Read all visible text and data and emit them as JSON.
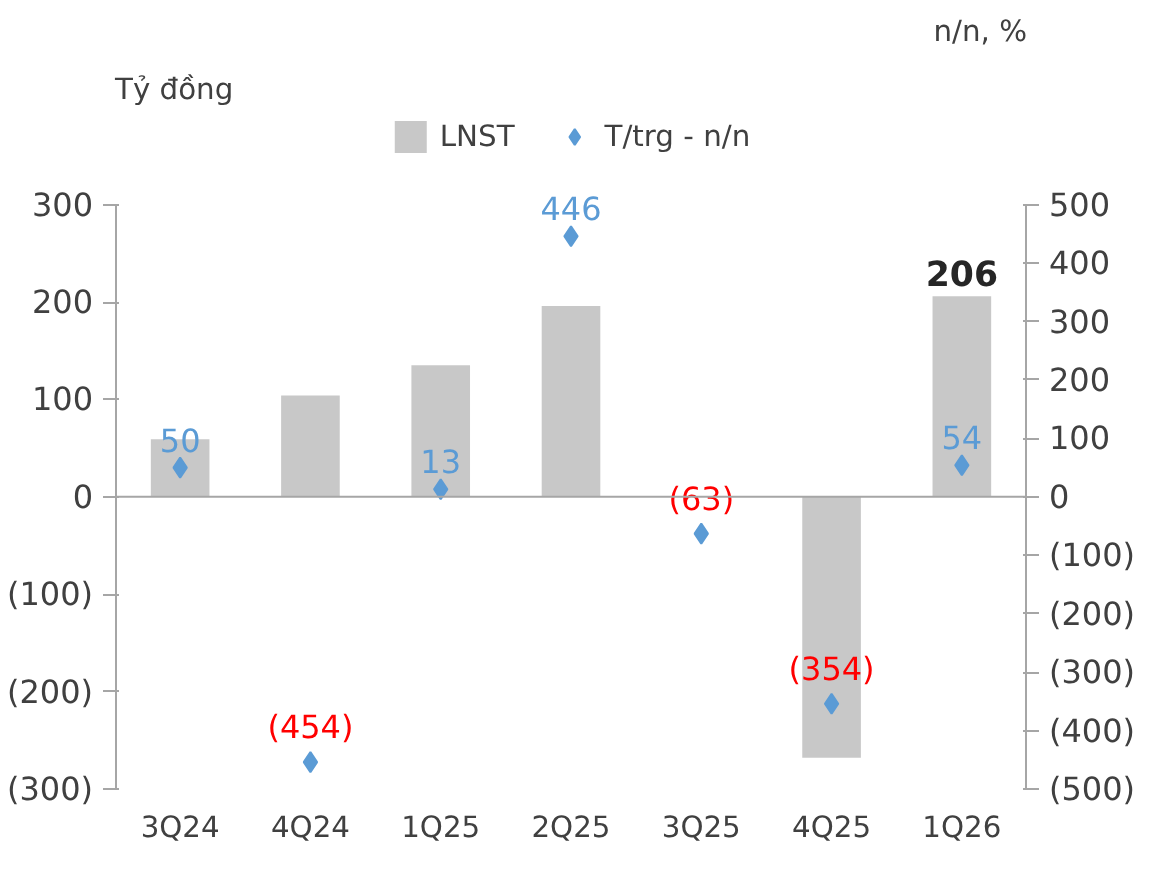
{
  "chart_data": {
    "type": "bar",
    "categories": [
      "3Q24",
      "4Q24",
      "1Q25",
      "2Q25",
      "3Q25",
      "4Q25",
      "1Q26"
    ],
    "ylabel": "Tỷ đồng",
    "y2label": "n/n, %",
    "ylim": [
      -300,
      300
    ],
    "yticks": [
      {
        "value": -300,
        "label": "(300)"
      },
      {
        "value": -200,
        "label": "(200)"
      },
      {
        "value": -100,
        "label": "(100)"
      },
      0,
      100,
      200,
      300
    ],
    "y2lim": [
      -500,
      500
    ],
    "y2ticks": [
      {
        "value": -500,
        "label": "(500)"
      },
      {
        "value": -400,
        "label": "(400)"
      },
      {
        "value": -300,
        "label": "(300)"
      },
      {
        "value": -200,
        "label": "(200)"
      },
      {
        "value": -100,
        "label": "(100)"
      },
      0,
      100,
      200,
      300,
      400,
      500
    ],
    "series": [
      {
        "name": "LNST",
        "color": "#c8c8c8",
        "values": [
          59,
          104,
          135,
          196,
          0,
          -268,
          206
        ],
        "value_labels": [
          null,
          null,
          null,
          null,
          null,
          null,
          "206"
        ]
      },
      {
        "name": "T/trg - n/n",
        "type": "scatter",
        "axis": "y2",
        "marker": "diamond",
        "color": "#5b9bd5",
        "values": [
          50,
          -454,
          13,
          446,
          -63,
          -354,
          54
        ],
        "value_labels": [
          "50",
          "(454)",
          "13",
          "446",
          "(63)",
          "(354)",
          "54"
        ]
      }
    ],
    "ref_lines": [
      {
        "axis": "y",
        "value": 0,
        "color": "#a6a6a6"
      }
    ],
    "legend": "top",
    "grid": false
  }
}
